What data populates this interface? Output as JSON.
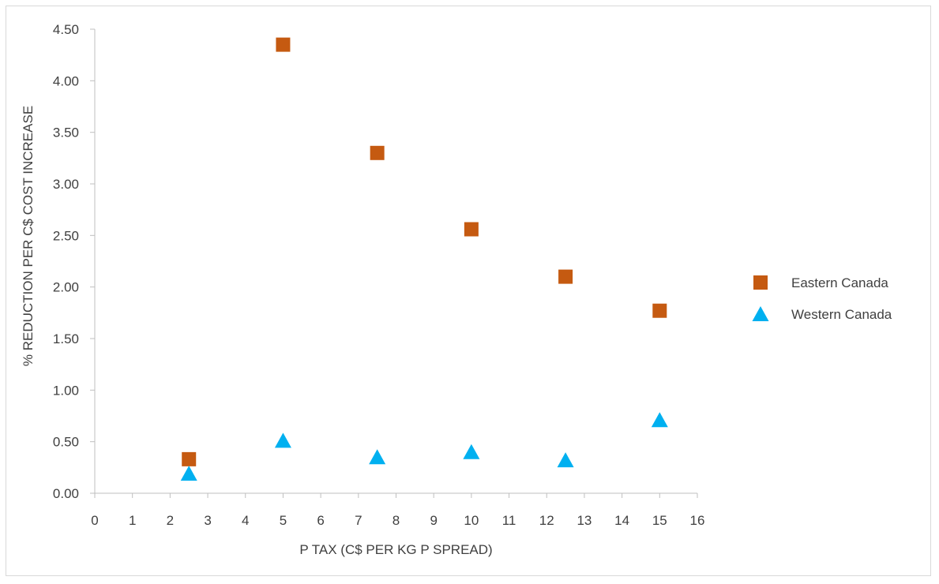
{
  "chart_data": {
    "type": "scatter",
    "title": "",
    "xlabel": "P TAX (C$ PER KG P SPREAD)",
    "ylabel": "% REDUCTION PER C$ COST INCREASE",
    "xlim": [
      0,
      16
    ],
    "ylim": [
      0,
      4.5
    ],
    "x_ticks": [
      "0",
      "1",
      "2",
      "3",
      "4",
      "5",
      "6",
      "7",
      "8",
      "9",
      "10",
      "11",
      "12",
      "13",
      "14",
      "15",
      "16"
    ],
    "y_ticks": [
      "0.00",
      "0.50",
      "1.00",
      "1.50",
      "2.00",
      "2.50",
      "3.00",
      "3.50",
      "4.00",
      "4.50"
    ],
    "grid": false,
    "legend_position": "right",
    "series": [
      {
        "name": "Eastern Canada",
        "marker": "square",
        "color": "#C55A11",
        "points": [
          [
            2.5,
            0.33
          ],
          [
            5,
            4.35
          ],
          [
            7.5,
            3.3
          ],
          [
            10,
            2.56
          ],
          [
            12.5,
            2.1
          ],
          [
            15,
            1.77
          ]
        ]
      },
      {
        "name": "Western Canada",
        "marker": "triangle",
        "color": "#00B0F0",
        "points": [
          [
            2.5,
            0.19
          ],
          [
            5,
            0.51
          ],
          [
            7.5,
            0.35
          ],
          [
            10,
            0.4
          ],
          [
            12.5,
            0.32
          ],
          [
            15,
            0.71
          ]
        ]
      }
    ]
  }
}
